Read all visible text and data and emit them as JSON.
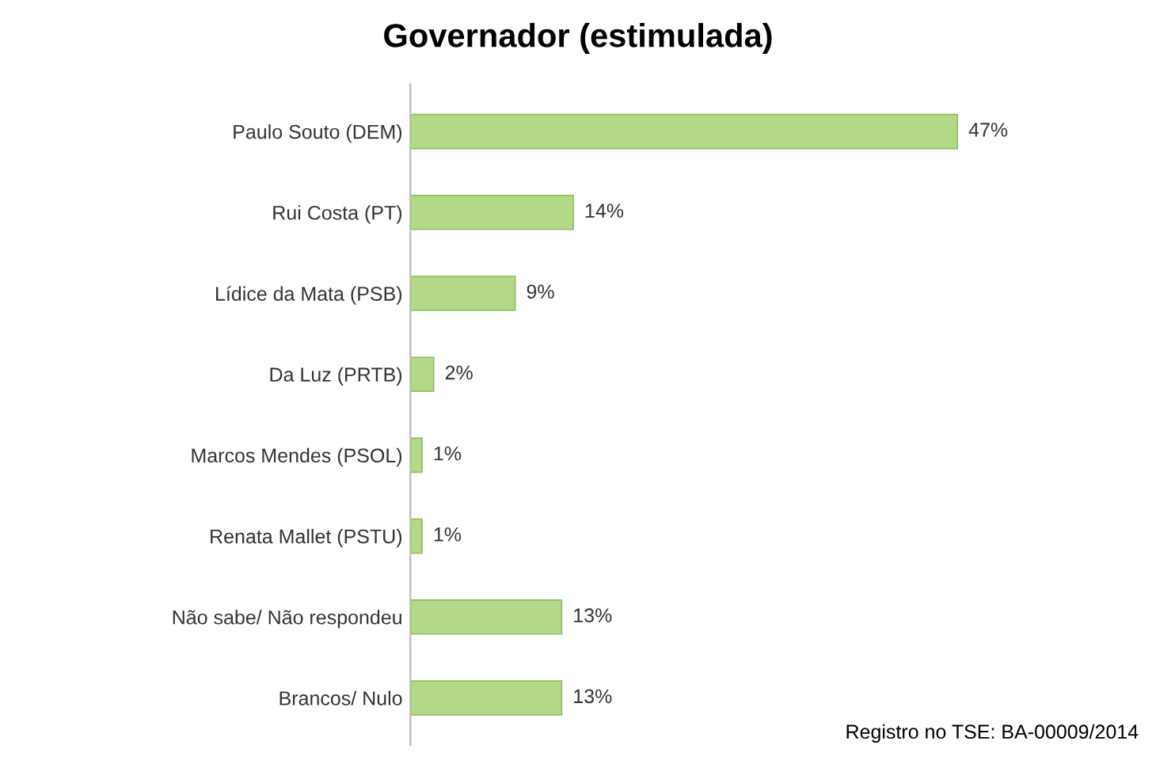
{
  "chart_data": {
    "type": "bar",
    "orientation": "horizontal",
    "title": "Governador (estimulada)",
    "categories": [
      "Paulo Souto (DEM)",
      "Rui Costa (PT)",
      "Lídice da Mata (PSB)",
      "Da Luz (PRTB)",
      "Marcos Mendes (PSOL)",
      "Renata Mallet (PSTU)",
      "Não sabe/ Não respondeu",
      "Brancos/ Nulo"
    ],
    "values": [
      47,
      14,
      9,
      2,
      1,
      1,
      13,
      13
    ],
    "value_labels": [
      "47%",
      "14%",
      "9%",
      "2%",
      "1%",
      "1%",
      "13%",
      "13%"
    ],
    "color": "#b3d888",
    "tick_labels": "y",
    "grid": false,
    "annotations": [
      "Registro no TSE: BA-00009/2014"
    ]
  }
}
